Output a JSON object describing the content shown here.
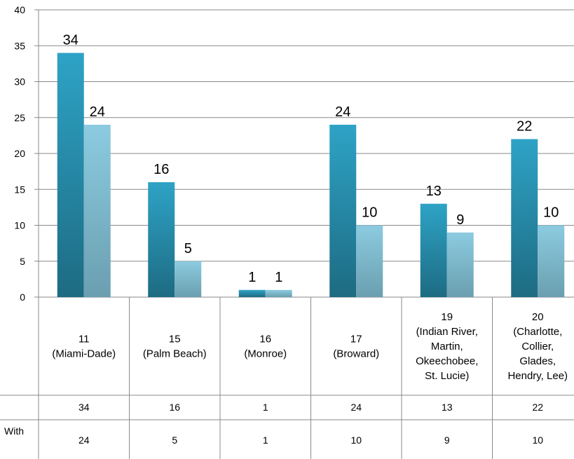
{
  "chart_data": {
    "type": "bar",
    "categories": [
      [
        "11",
        "(Miami-Dade)"
      ],
      [
        "15",
        "(Palm Beach)"
      ],
      [
        "16",
        "(Monroe)"
      ],
      [
        "17",
        "(Broward)"
      ],
      [
        "19",
        "(Indian River,",
        "Martin,",
        "Okeechobee,",
        "St. Lucie)"
      ],
      [
        "20",
        "(Charlotte,",
        "Collier,",
        "Glades,",
        "Hendry, Lee)"
      ]
    ],
    "series": [
      {
        "name": "",
        "values": [
          34,
          16,
          1,
          24,
          13,
          22
        ]
      },
      {
        "name": "With",
        "values": [
          24,
          5,
          1,
          10,
          9,
          10
        ]
      }
    ],
    "ylim": [
      0,
      40
    ],
    "yticks": [
      "0",
      "5",
      "10",
      "15",
      "20",
      "25",
      "30",
      "35",
      "40"
    ],
    "grid": true,
    "data_table": true,
    "colors": [
      "#2b9bbd",
      "#84c4d9"
    ]
  }
}
